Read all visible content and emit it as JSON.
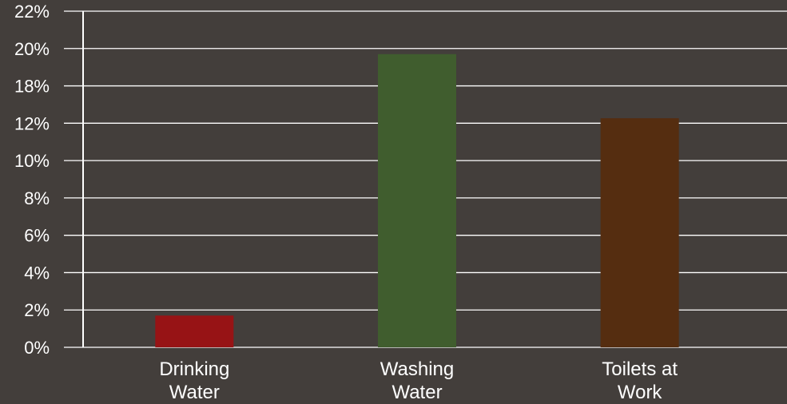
{
  "chart_data": {
    "type": "bar",
    "categories": [
      [
        "Drinking",
        "Water"
      ],
      [
        "Washing",
        "Water"
      ],
      [
        "Toilets at",
        "Work"
      ]
    ],
    "values": [
      1.7,
      19.7,
      12.8
    ],
    "bar_colors": [
      "#971315",
      "#405d2e",
      "#552d10"
    ],
    "y_tick_labels": [
      "0%",
      "2%",
      "4%",
      "6%",
      "8%",
      "10%",
      "12%",
      "18%",
      "20%",
      "22%"
    ],
    "ylim": [
      0,
      22
    ],
    "grid": true,
    "grid_color": "#ffffff",
    "background": "#433e3b",
    "title": "",
    "xlabel": "",
    "ylabel": ""
  }
}
